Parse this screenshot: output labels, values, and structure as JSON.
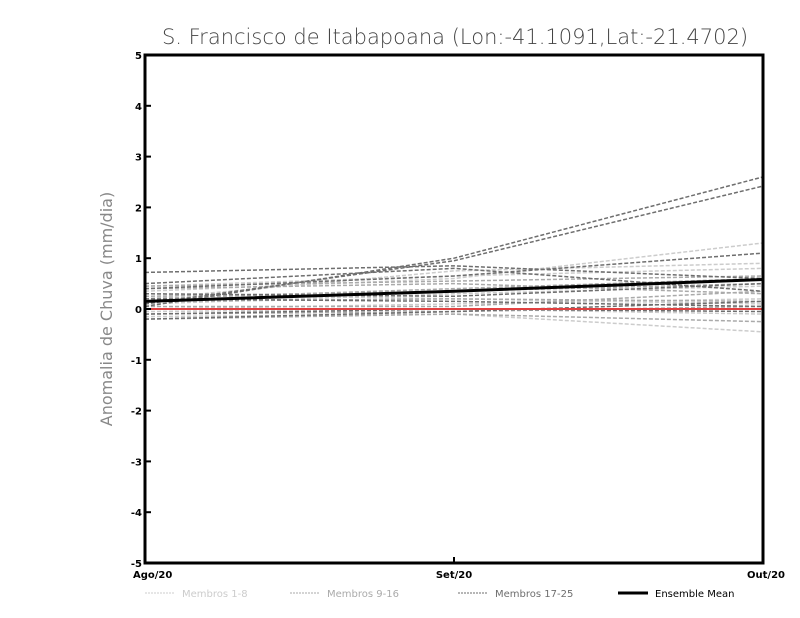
{
  "chart_data": {
    "type": "line",
    "title": "S. Francisco de Itabapoana (Lon:-41.1091,Lat:-21.4702)",
    "xlabel": "",
    "ylabel": "Anomalia de Chuva (mm/dia)",
    "categories": [
      "Ago/20",
      "Set/20",
      "Out/20"
    ],
    "ylim": [
      -5,
      5
    ],
    "yticks": [
      -5,
      -4,
      -3,
      -2,
      -1,
      0,
      1,
      2,
      3,
      4,
      5
    ],
    "grid": false,
    "legend_position": "bottom",
    "zero_line": {
      "value": 0,
      "color": "#e04040"
    },
    "groups": [
      {
        "name": "Membros 1-8",
        "color": "#cccccc"
      },
      {
        "name": "Membros 9-16",
        "color": "#aaaaaa"
      },
      {
        "name": "Membros 17-25",
        "color": "#6e6e6e"
      }
    ],
    "series": [
      {
        "group": 0,
        "values": [
          0.35,
          0.6,
          1.3
        ]
      },
      {
        "group": 0,
        "values": [
          0.2,
          0.75,
          0.9
        ]
      },
      {
        "group": 0,
        "values": [
          0.1,
          0.3,
          0.45
        ]
      },
      {
        "group": 0,
        "values": [
          0.0,
          0.1,
          0.2
        ]
      },
      {
        "group": 0,
        "values": [
          -0.05,
          0.0,
          -0.1
        ]
      },
      {
        "group": 0,
        "values": [
          -0.15,
          -0.1,
          -0.45
        ]
      },
      {
        "group": 0,
        "values": [
          0.45,
          0.65,
          0.8
        ]
      },
      {
        "group": 0,
        "values": [
          0.3,
          0.2,
          0.1
        ]
      },
      {
        "group": 1,
        "values": [
          0.4,
          0.5,
          0.3
        ]
      },
      {
        "group": 1,
        "values": [
          0.25,
          0.35,
          0.5
        ]
      },
      {
        "group": 1,
        "values": [
          0.15,
          0.2,
          0.15
        ]
      },
      {
        "group": 1,
        "values": [
          0.05,
          0.05,
          0.35
        ]
      },
      {
        "group": 1,
        "values": [
          -0.1,
          -0.05,
          0.05
        ]
      },
      {
        "group": 1,
        "values": [
          0.45,
          0.55,
          0.65
        ]
      },
      {
        "group": 1,
        "values": [
          0.2,
          0.4,
          0.6
        ]
      },
      {
        "group": 1,
        "values": [
          -0.2,
          -0.1,
          -0.25
        ]
      },
      {
        "group": 2,
        "values": [
          0.05,
          1.0,
          2.6
        ]
      },
      {
        "group": 2,
        "values": [
          0.1,
          0.95,
          2.42
        ]
      },
      {
        "group": 2,
        "values": [
          0.72,
          0.85,
          0.6
        ]
      },
      {
        "group": 2,
        "values": [
          0.5,
          0.8,
          0.35
        ]
      },
      {
        "group": 2,
        "values": [
          0.4,
          0.65,
          1.1
        ]
      },
      {
        "group": 2,
        "values": [
          0.3,
          0.25,
          0.5
        ]
      },
      {
        "group": 2,
        "values": [
          0.2,
          0.15,
          0.05
        ]
      },
      {
        "group": 2,
        "values": [
          -0.1,
          0.0,
          -0.05
        ]
      },
      {
        "group": 2,
        "values": [
          -0.2,
          -0.05,
          0.15
        ]
      }
    ],
    "ensemble_mean": {
      "name": "Ensemble Mean",
      "color": "#000000",
      "values": [
        0.15,
        0.35,
        0.58
      ]
    }
  }
}
